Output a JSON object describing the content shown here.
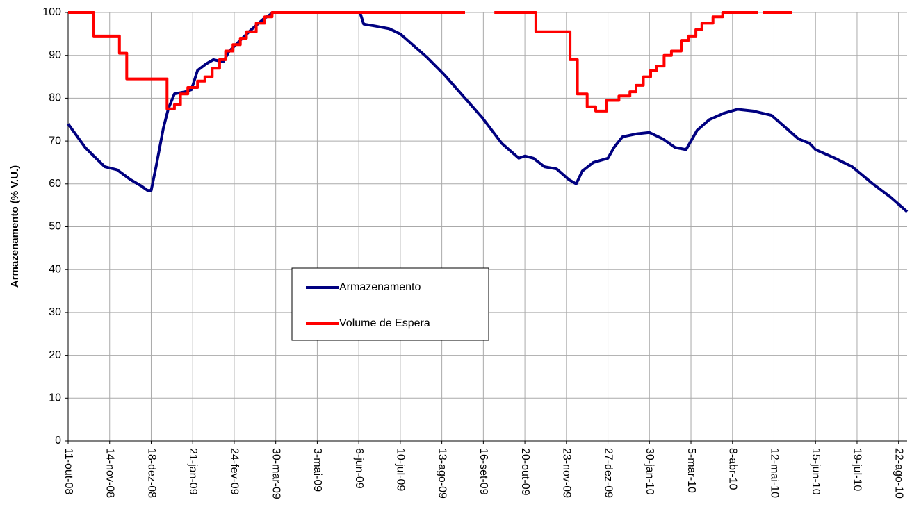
{
  "chart_data": {
    "type": "line",
    "ylabel": "Armazenamento (% V.U.)",
    "ylim": [
      0,
      100
    ],
    "yticks": [
      0,
      10,
      20,
      30,
      40,
      50,
      60,
      70,
      80,
      90,
      100
    ],
    "xlim": [
      "2008-10-11",
      "2010-08-29"
    ],
    "xticks": [
      {
        "value": "2008-10-11",
        "label": "11-out-08"
      },
      {
        "value": "2008-11-14",
        "label": "14-nov-08"
      },
      {
        "value": "2008-12-18",
        "label": "18-dez-08"
      },
      {
        "value": "2009-01-21",
        "label": "21-jan-09"
      },
      {
        "value": "2009-02-24",
        "label": "24-fev-09"
      },
      {
        "value": "2009-03-30",
        "label": "30-mar-09"
      },
      {
        "value": "2009-05-03",
        "label": "3-mai-09"
      },
      {
        "value": "2009-06-06",
        "label": "6-jun-09"
      },
      {
        "value": "2009-07-10",
        "label": "10-jul-09"
      },
      {
        "value": "2009-08-13",
        "label": "13-ago-09"
      },
      {
        "value": "2009-09-16",
        "label": "16-set-09"
      },
      {
        "value": "2009-10-20",
        "label": "20-out-09"
      },
      {
        "value": "2009-11-23",
        "label": "23-nov-09"
      },
      {
        "value": "2009-12-27",
        "label": "27-dez-09"
      },
      {
        "value": "2010-01-30",
        "label": "30-jan-10"
      },
      {
        "value": "2010-03-05",
        "label": "5-mar-10"
      },
      {
        "value": "2010-04-08",
        "label": "8-abr-10"
      },
      {
        "value": "2010-05-12",
        "label": "12-mai-10"
      },
      {
        "value": "2010-06-15",
        "label": "15-jun-10"
      },
      {
        "value": "2010-07-19",
        "label": "19-jul-10"
      },
      {
        "value": "2010-08-22",
        "label": "22-ago-10"
      }
    ],
    "grid": true,
    "series": [
      {
        "name": "Armazenamento",
        "color": "#000080",
        "x": [
          "2008-10-11",
          "2008-10-25",
          "2008-11-01",
          "2008-11-10",
          "2008-11-20",
          "2008-12-01",
          "2008-12-10",
          "2008-12-15",
          "2008-12-18",
          "2008-12-22",
          "2008-12-28",
          "2009-01-01",
          "2009-01-06",
          "2009-01-15",
          "2009-01-20",
          "2009-01-25",
          "2009-02-01",
          "2009-02-07",
          "2009-02-15",
          "2009-02-20",
          "2009-03-01",
          "2009-03-10",
          "2009-03-20",
          "2009-03-28",
          "2009-06-07",
          "2009-06-10",
          "2009-06-20",
          "2009-07-01",
          "2009-07-10",
          "2009-07-20",
          "2009-08-01",
          "2009-08-15",
          "2009-09-01",
          "2009-09-15",
          "2009-10-01",
          "2009-10-15",
          "2009-10-20",
          "2009-10-27",
          "2009-11-05",
          "2009-11-15",
          "2009-11-25",
          "2009-12-01",
          "2009-12-06",
          "2009-12-15",
          "2009-12-27",
          "2010-01-01",
          "2010-01-08",
          "2010-01-20",
          "2010-01-30",
          "2010-02-10",
          "2010-02-20",
          "2010-03-01",
          "2010-03-10",
          "2010-03-20",
          "2010-04-01",
          "2010-04-12",
          "2010-04-25",
          "2010-05-10",
          "2010-05-20",
          "2010-06-01",
          "2010-06-10",
          "2010-06-15",
          "2010-07-01",
          "2010-07-15",
          "2010-08-01",
          "2010-08-15",
          "2010-08-29"
        ],
        "values": [
          74,
          68.5,
          66.5,
          64,
          63.3,
          61,
          59.5,
          58.5,
          58.5,
          64,
          73,
          77.5,
          81,
          81.5,
          82,
          86.5,
          88,
          89,
          88.5,
          91,
          93.5,
          96,
          98.5,
          100,
          100,
          97.3,
          96.8,
          96.2,
          95,
          92.5,
          89.5,
          85.5,
          80,
          75.5,
          69.5,
          66,
          66.5,
          66,
          64,
          63.5,
          61,
          60,
          63,
          65,
          66,
          68.5,
          71,
          71.7,
          72,
          70.5,
          68.5,
          68,
          72.5,
          75,
          76.5,
          77.4,
          77,
          76,
          73.5,
          70.5,
          69.5,
          68,
          66,
          64,
          60,
          57,
          53.5
        ]
      },
      {
        "name": "Volume de Espera",
        "color": "#ff0000",
        "x": [
          "2008-10-11",
          "2008-11-01",
          "2008-11-01",
          "2008-11-22",
          "2008-11-22",
          "2008-11-28",
          "2008-11-28",
          "2008-12-31",
          "2008-12-31",
          "2009-01-06",
          "2009-01-06",
          "2009-01-11",
          "2009-01-11",
          "2009-01-17",
          "2009-01-17",
          "2009-01-25",
          "2009-01-25",
          "2009-01-31",
          "2009-01-31",
          "2009-02-06",
          "2009-02-06",
          "2009-02-12",
          "2009-02-12",
          "2009-02-17",
          "2009-02-17",
          "2009-02-23",
          "2009-02-23",
          "2009-03-01",
          "2009-03-01",
          "2009-03-06",
          "2009-03-06",
          "2009-03-14",
          "2009-03-14",
          "2009-03-21",
          "2009-03-21",
          "2009-03-27",
          "2009-03-27",
          "2009-09-01",
          "2009-09-13",
          "2009-09-25",
          "2009-10-29",
          "2009-10-29",
          "2009-11-26",
          "2009-11-26",
          "2009-12-02",
          "2009-12-02",
          "2009-12-10",
          "2009-12-10",
          "2009-12-17",
          "2009-12-17",
          "2009-12-26",
          "2009-12-26",
          "2010-01-05",
          "2010-01-05",
          "2010-01-14",
          "2010-01-14",
          "2010-01-19",
          "2010-01-19",
          "2010-01-25",
          "2010-01-25",
          "2010-01-31",
          "2010-01-31",
          "2010-02-05",
          "2010-02-05",
          "2010-02-11",
          "2010-02-11",
          "2010-02-17",
          "2010-02-17",
          "2010-02-25",
          "2010-02-25",
          "2010-03-03",
          "2010-03-03",
          "2010-03-09",
          "2010-03-09",
          "2010-03-14",
          "2010-03-14",
          "2010-03-23",
          "2010-03-23",
          "2010-03-31",
          "2010-03-31",
          "2010-04-29",
          "2010-05-01",
          "2010-05-03",
          "2010-05-27"
        ],
        "values": [
          100,
          100,
          94.5,
          94.5,
          90.5,
          90.5,
          84.5,
          84.5,
          77.5,
          77.5,
          78.5,
          78.5,
          81,
          81,
          82.5,
          82.5,
          84,
          84,
          85,
          85,
          87,
          87,
          89,
          89,
          91,
          91,
          92.5,
          92.5,
          94,
          94,
          95.5,
          95.5,
          97.5,
          97.5,
          99,
          99,
          100,
          100,
          null,
          100,
          100,
          95.5,
          95.5,
          89,
          89,
          81,
          81,
          78,
          78,
          77,
          77,
          79.5,
          79.5,
          80.5,
          80.5,
          81.5,
          81.5,
          83,
          83,
          85,
          85,
          86.5,
          86.5,
          87.5,
          87.5,
          90,
          90,
          91,
          91,
          93.5,
          93.5,
          94.5,
          94.5,
          96,
          96,
          97.5,
          97.5,
          99,
          99,
          100,
          100,
          null,
          100,
          100
        ]
      }
    ]
  }
}
